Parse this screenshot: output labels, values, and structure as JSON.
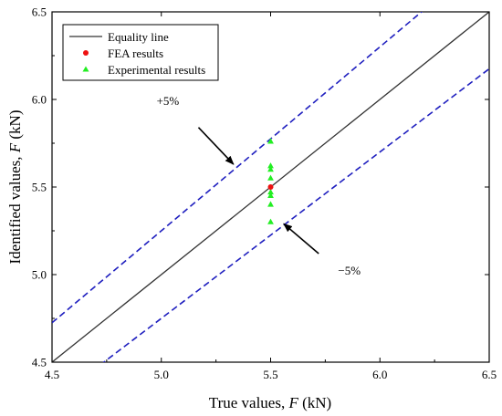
{
  "chart_data": {
    "type": "scatter",
    "xlabel": {
      "main": "True values, ",
      "var": "F",
      "unit": " (kN)"
    },
    "ylabel": {
      "main": "Identified values, ",
      "var": "F",
      "unit": " (kN)"
    },
    "xlim": [
      4.5,
      6.5
    ],
    "ylim": [
      4.5,
      6.5
    ],
    "xticks": [
      "4.5",
      "5.0",
      "5.5",
      "6.0",
      "6.5"
    ],
    "yticks": [
      "4.5",
      "5.0",
      "5.5",
      "6.0",
      "6.5"
    ],
    "grid": false,
    "legend_position": "top-left",
    "series": [
      {
        "name": "Equality line",
        "kind": "line",
        "color": "#333333",
        "style": "solid",
        "points": [
          [
            4.5,
            4.5
          ],
          [
            6.5,
            6.5
          ]
        ]
      },
      {
        "name": "",
        "kind": "line",
        "color": "#1f1fbf",
        "style": "dashed",
        "points": [
          [
            4.5,
            4.725
          ],
          [
            6.5,
            6.825
          ]
        ]
      },
      {
        "name": "",
        "kind": "line",
        "color": "#1f1fbf",
        "style": "dashed",
        "points": [
          [
            4.5,
            4.275
          ],
          [
            6.5,
            6.175
          ]
        ]
      },
      {
        "name": "FEA results",
        "kind": "circle",
        "color": "#ee1111",
        "points": [
          [
            5.5,
            5.5
          ]
        ]
      },
      {
        "name": "Experimental results",
        "kind": "triangle",
        "color": "#22ee22",
        "points": [
          [
            5.5,
            5.3
          ],
          [
            5.5,
            5.4
          ],
          [
            5.5,
            5.45
          ],
          [
            5.5,
            5.47
          ],
          [
            5.5,
            5.55
          ],
          [
            5.5,
            5.6
          ],
          [
            5.5,
            5.62
          ],
          [
            5.5,
            5.76
          ]
        ]
      }
    ],
    "annotations": [
      {
        "text": "+5%",
        "at": [
          5.03,
          5.97
        ],
        "arrow_to": [
          5.33,
          5.63
        ],
        "arrow_from": [
          5.17,
          5.84
        ]
      },
      {
        "text": "−5%",
        "at": [
          5.86,
          5.0
        ],
        "arrow_to": [
          5.56,
          5.29
        ],
        "arrow_from": [
          5.72,
          5.12
        ]
      }
    ]
  }
}
